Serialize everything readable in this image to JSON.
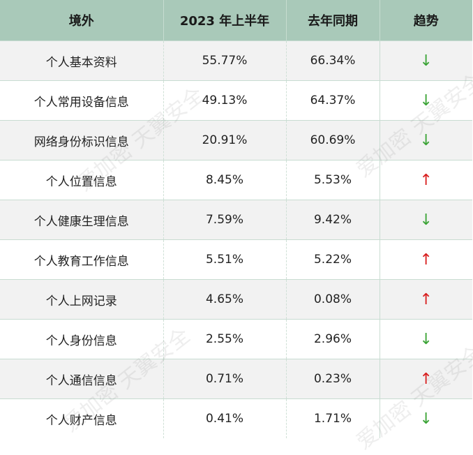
{
  "table": {
    "headers": [
      "境外",
      "2023 年上半年",
      "去年同期",
      "趋势"
    ],
    "rows": [
      {
        "name": "个人基本资料",
        "h1_2023": "55.77%",
        "last_year": "66.34%",
        "trend": "↓",
        "trend_dir": "down"
      },
      {
        "name": "个人常用设备信息",
        "h1_2023": "49.13%",
        "last_year": "64.37%",
        "trend": "↓",
        "trend_dir": "down"
      },
      {
        "name": "网络身份标识信息",
        "h1_2023": "20.91%",
        "last_year": "60.69%",
        "trend": "↓",
        "trend_dir": "down"
      },
      {
        "name": "个人位置信息",
        "h1_2023": "8.45%",
        "last_year": "5.53%",
        "trend": "↑",
        "trend_dir": "up"
      },
      {
        "name": "个人健康生理信息",
        "h1_2023": "7.59%",
        "last_year": "9.42%",
        "trend": "↓",
        "trend_dir": "down"
      },
      {
        "name": "个人教育工作信息",
        "h1_2023": "5.51%",
        "last_year": "5.22%",
        "trend": "↑",
        "trend_dir": "up"
      },
      {
        "name": "个人上网记录",
        "h1_2023": "4.65%",
        "last_year": "0.08%",
        "trend": "↑",
        "trend_dir": "up"
      },
      {
        "name": "个人身份信息",
        "h1_2023": "2.55%",
        "last_year": "2.96%",
        "trend": "↓",
        "trend_dir": "down"
      },
      {
        "name": "个人通信信息",
        "h1_2023": "0.71%",
        "last_year": "0.23%",
        "trend": "↑",
        "trend_dir": "up"
      },
      {
        "name": "个人财产信息",
        "h1_2023": "0.41%",
        "last_year": "1.71%",
        "trend": "↓",
        "trend_dir": "down"
      }
    ]
  },
  "watermark": {
    "text": "爱加密 天翼安全"
  },
  "colors": {
    "header_bg": "#a9c9b9",
    "trend_down": "#3aa335",
    "trend_up": "#d81e1e",
    "row_alt_bg": "#f2f2f2"
  }
}
